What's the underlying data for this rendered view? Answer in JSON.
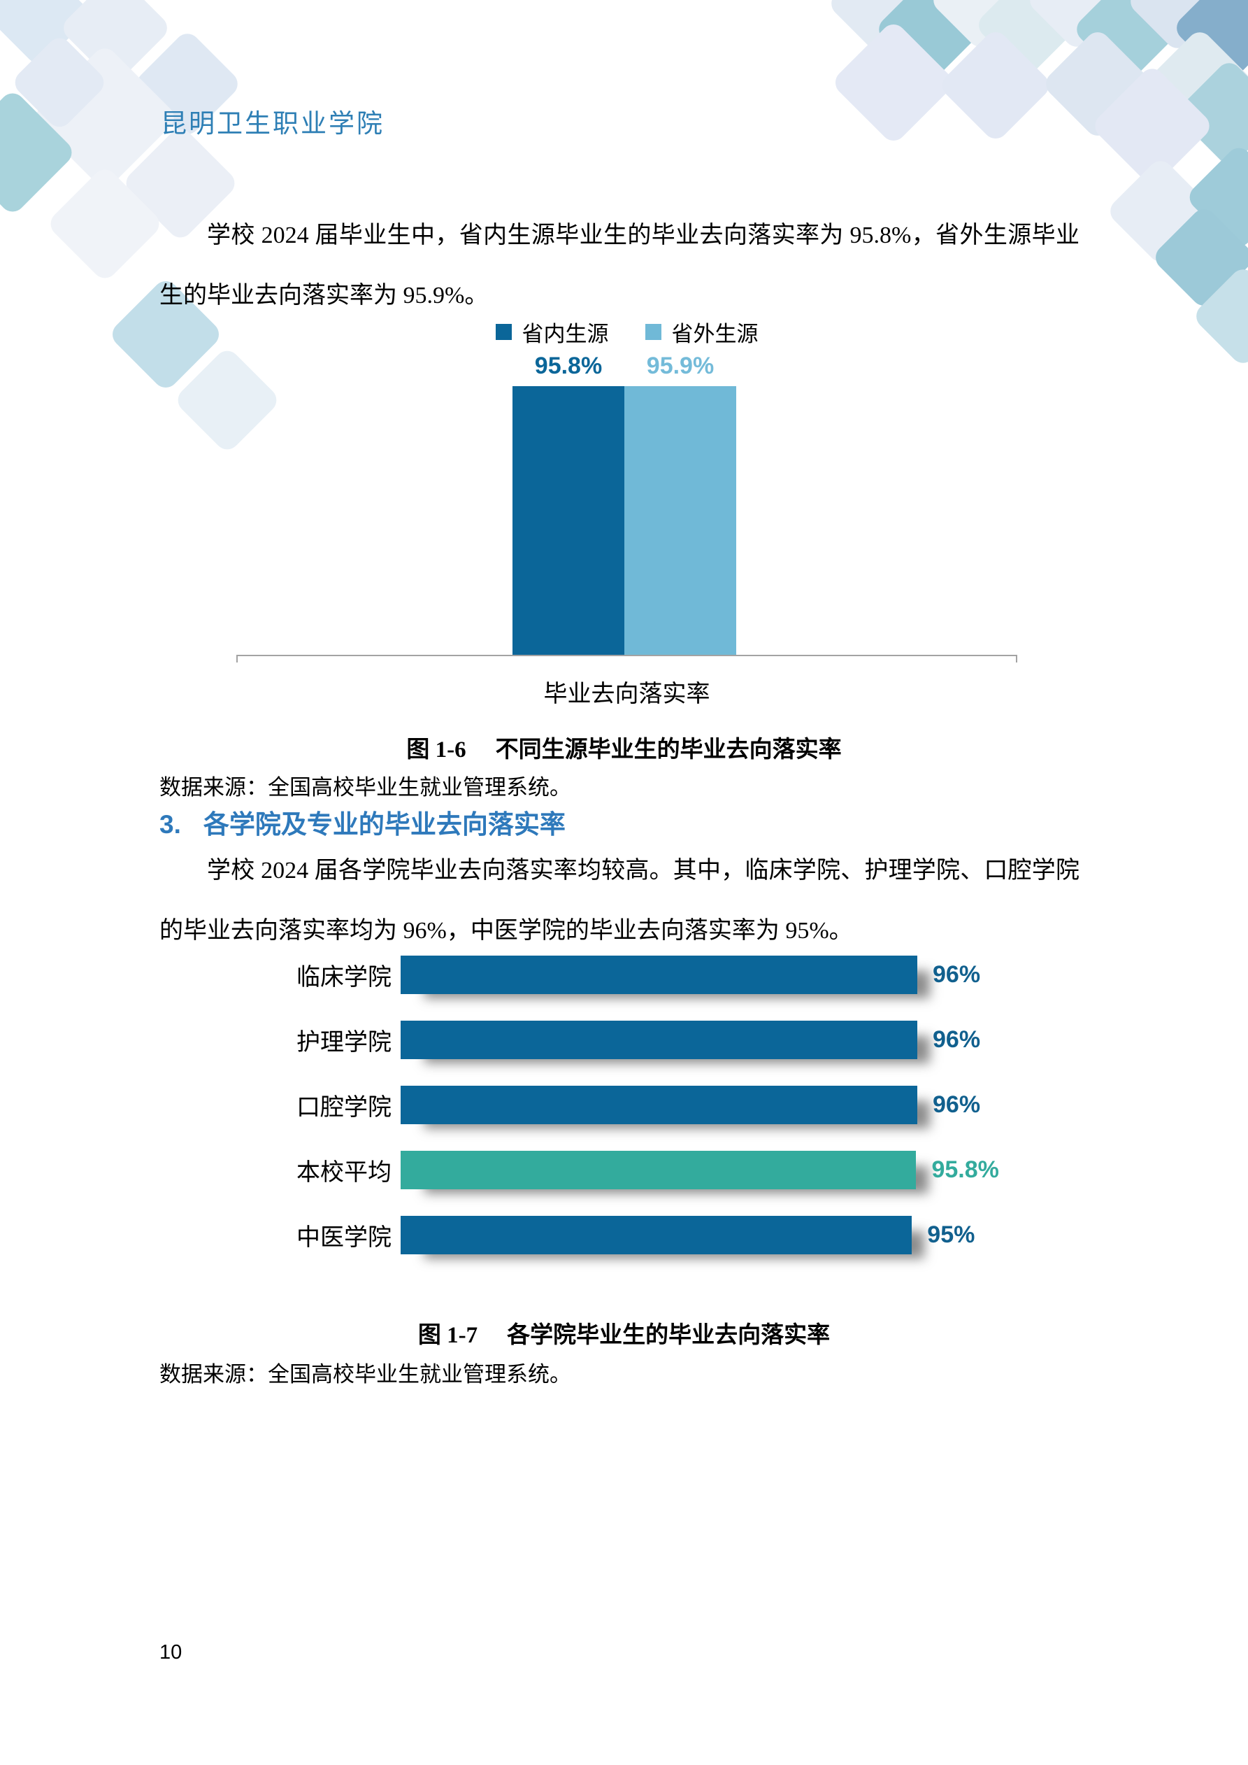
{
  "header": {
    "org_name": "昆明卫生职业学院"
  },
  "intro_paragraph": "学校 2024 届毕业生中，省内生源毕业生的毕业去向落实率为 95.8%，省外生源毕业生的毕业去向落实率为 95.9%。",
  "figure_1_6": {
    "legend": [
      {
        "label": "省内生源",
        "color": "#0B6699"
      },
      {
        "label": "省外生源",
        "color": "#70B9D7"
      }
    ],
    "bars": [
      {
        "label": "省内生源",
        "value": 95.8,
        "value_label": "95.8%",
        "color": "#0B6699",
        "label_color": "#0B6699"
      },
      {
        "label": "省外生源",
        "value": 95.9,
        "value_label": "95.9%",
        "color": "#70B9D7",
        "label_color": "#74BBD9"
      }
    ],
    "x_axis_label": "毕业去向落实率",
    "caption_tag": "图 1-6",
    "caption_title": "不同生源毕业生的毕业去向落实率",
    "source": "数据来源：全国高校毕业生就业管理系统。"
  },
  "section_heading": {
    "number": "3.",
    "title": "各学院及专业的毕业去向落实率"
  },
  "section_paragraph": "学校 2024 届各学院毕业去向落实率均较高。其中，临床学院、护理学院、口腔学院的毕业去向落实率均为 96%，中医学院的毕业去向落实率为 95%。",
  "figure_1_7": {
    "rows": [
      {
        "label": "临床学院",
        "value": 96,
        "value_label": "96%",
        "color": "#0B6699",
        "label_color": "#11608E"
      },
      {
        "label": "护理学院",
        "value": 96,
        "value_label": "96%",
        "color": "#0B6699",
        "label_color": "#11608E"
      },
      {
        "label": "口腔学院",
        "value": 96,
        "value_label": "96%",
        "color": "#0B6699",
        "label_color": "#11608E"
      },
      {
        "label": "本校平均",
        "value": 95.8,
        "value_label": "95.8%",
        "color": "#33AB9D",
        "label_color": "#33AB9D"
      },
      {
        "label": "中医学院",
        "value": 95,
        "value_label": "95%",
        "color": "#0B6699",
        "label_color": "#11608E"
      }
    ],
    "caption_tag": "图 1-7",
    "caption_title": "各学院毕业生的毕业去向落实率",
    "source": "数据来源：全国高校毕业生就业管理系统。"
  },
  "page_number": "10",
  "colors": {
    "primary_blue": "#0B6699",
    "light_blue": "#70B9D7",
    "teal": "#33AB9D",
    "heading_blue": "#2E79BB",
    "header_text_blue": "#2E7FB5",
    "axis_gray": "#A3A3A3"
  },
  "chart_data": [
    {
      "type": "bar",
      "title": "不同生源毕业生的毕业去向落实率",
      "categories": [
        "毕业去向落实率"
      ],
      "series": [
        {
          "name": "省内生源",
          "values": [
            95.8
          ]
        },
        {
          "name": "省外生源",
          "values": [
            95.9
          ]
        }
      ],
      "value_labels": [
        "95.8%",
        "95.9%"
      ],
      "legend_position": "top",
      "grid": false,
      "xlabel": "",
      "ylabel": ""
    },
    {
      "type": "bar",
      "orientation": "horizontal",
      "title": "各学院毕业生的毕业去向落实率",
      "categories": [
        "临床学院",
        "护理学院",
        "口腔学院",
        "本校平均",
        "中医学院"
      ],
      "values": [
        96,
        96,
        96,
        95.8,
        95
      ],
      "value_labels": [
        "96%",
        "96%",
        "96%",
        "95.8%",
        "95%"
      ],
      "highlight_category": "本校平均",
      "grid": false,
      "xlim": [
        0,
        96
      ]
    }
  ]
}
